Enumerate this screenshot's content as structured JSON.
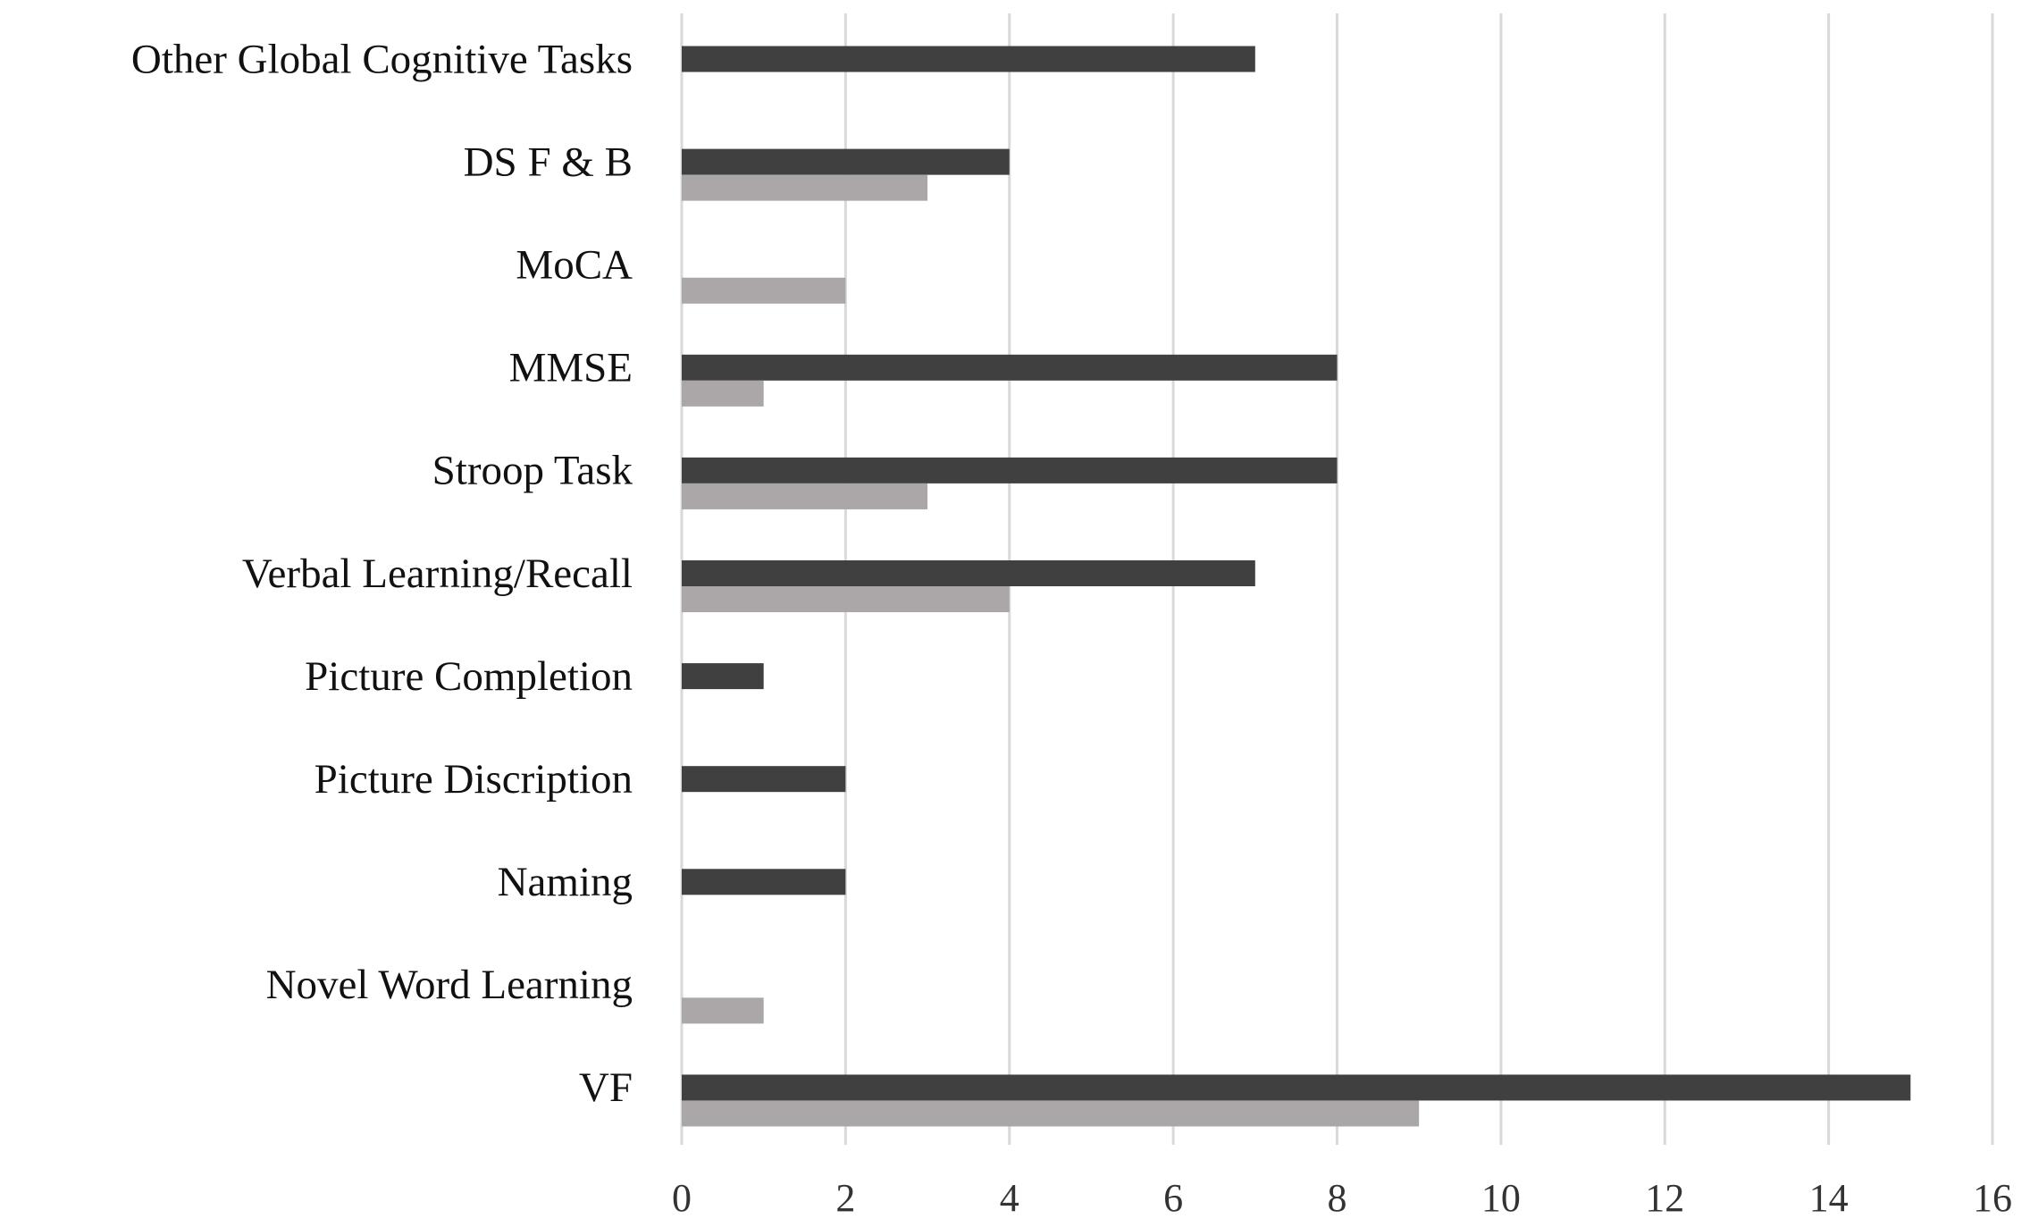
{
  "chart_data": {
    "type": "bar",
    "orientation": "horizontal",
    "title": "",
    "xlabel": "",
    "ylabel": "",
    "categories": [
      "Other Global Cognitive Tasks",
      "DS F & B",
      "MoCA",
      "MMSE",
      "Stroop Task",
      "Verbal Learning/Recall",
      "Picture Completion",
      "Picture Discription",
      "Naming",
      "Novel Word Learning",
      "VF"
    ],
    "series": [
      {
        "key": "dark",
        "color": "#404040",
        "values": [
          7,
          4,
          0,
          8,
          8,
          7,
          1,
          2,
          2,
          0,
          15
        ]
      },
      {
        "key": "light",
        "color": "#aba7a8",
        "values": [
          0,
          3,
          2,
          1,
          3,
          4,
          0,
          0,
          0,
          1,
          9
        ]
      }
    ],
    "xlim": [
      0,
      16
    ],
    "xticks": [
      "0",
      "2",
      "4",
      "6",
      "8",
      "10",
      "12",
      "14",
      "16"
    ],
    "grid": true,
    "gridColor": "#d9d9d9",
    "legend": "none"
  }
}
